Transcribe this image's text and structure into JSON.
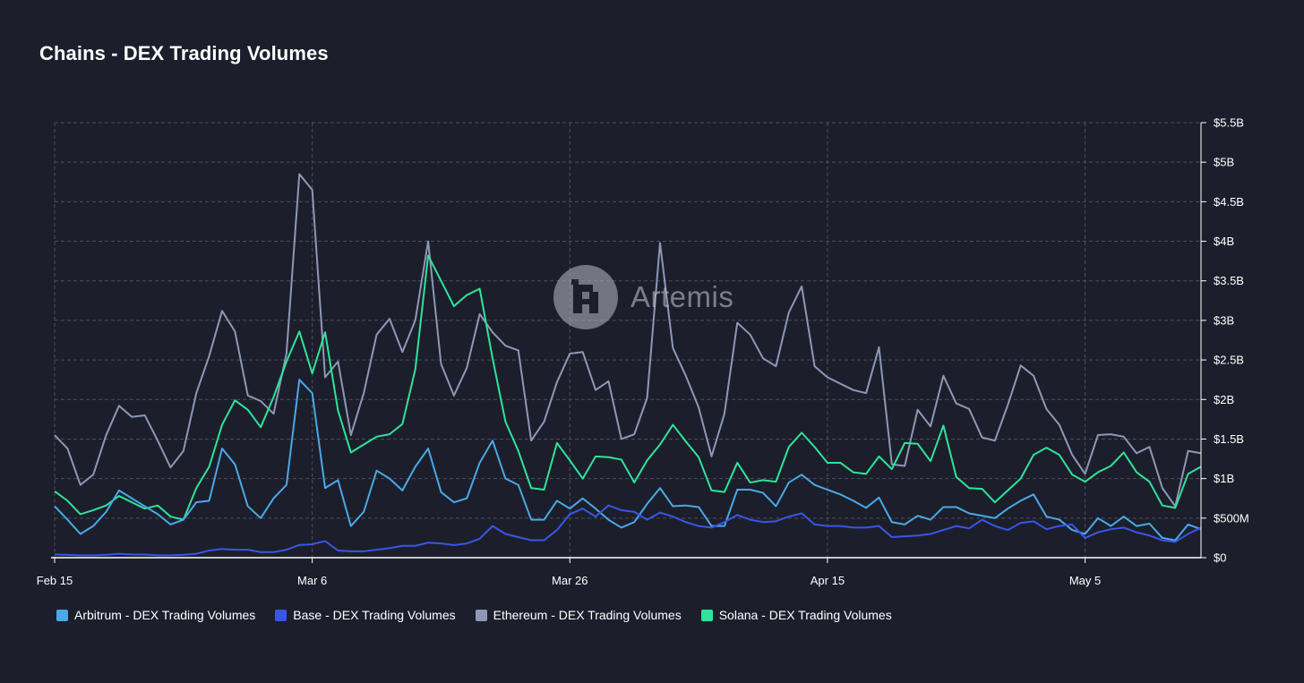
{
  "title": "Chains - DEX Trading Volumes",
  "watermark": {
    "text": "Artemis",
    "icon": "artemis-logo-icon"
  },
  "colors": {
    "background": "#1c1f2b",
    "grid": "#4a4e5e",
    "axis": "#ffffff"
  },
  "chart_data": {
    "type": "line",
    "title": "Chains - DEX Trading Volumes",
    "x_start": "Feb 15",
    "x_tick_labels": [
      "Feb 15",
      "Mar 6",
      "Mar 26",
      "Apr 15",
      "May 5"
    ],
    "x_tick_index": [
      0,
      20,
      40,
      60,
      80
    ],
    "y_tick_labels": [
      "$0",
      "$500M",
      "$1B",
      "$1.5B",
      "$2B",
      "$2.5B",
      "$3B",
      "$3.5B",
      "$4B",
      "$4.5B",
      "$5B",
      "$5.5B"
    ],
    "y_ticks": [
      0,
      0.5,
      1,
      1.5,
      2,
      2.5,
      3,
      3.5,
      4,
      4.5,
      5,
      5.5
    ],
    "ylim": [
      0,
      5.5
    ],
    "y_unit": "B USD",
    "y_axis_side": "right",
    "grid": true,
    "legend_position": "bottom-left",
    "series": [
      {
        "name": "Arbitrum - DEX Trading Volumes",
        "color": "#4aa8e8",
        "values": [
          0.65,
          0.48,
          0.3,
          0.4,
          0.58,
          0.85,
          0.75,
          0.65,
          0.55,
          0.42,
          0.48,
          0.7,
          0.72,
          1.38,
          1.18,
          0.65,
          0.5,
          0.75,
          0.92,
          2.25,
          2.08,
          0.88,
          0.98,
          0.4,
          0.58,
          1.1,
          1.0,
          0.85,
          1.15,
          1.38,
          0.83,
          0.7,
          0.75,
          1.2,
          1.48,
          1.0,
          0.92,
          0.48,
          0.48,
          0.72,
          0.62,
          0.75,
          0.62,
          0.48,
          0.38,
          0.45,
          0.68,
          0.88,
          0.65,
          0.66,
          0.64,
          0.4,
          0.4,
          0.86,
          0.86,
          0.82,
          0.65,
          0.95,
          1.05,
          0.92,
          0.86,
          0.8,
          0.72,
          0.63,
          0.76,
          0.45,
          0.42,
          0.53,
          0.48,
          0.64,
          0.64,
          0.56,
          0.53,
          0.5,
          0.62,
          0.72,
          0.8,
          0.52,
          0.48,
          0.35,
          0.3,
          0.5,
          0.4,
          0.52,
          0.4,
          0.43,
          0.25,
          0.22,
          0.42,
          0.36
        ]
      },
      {
        "name": "Base - DEX Trading Volumes",
        "color": "#3856e6",
        "values": [
          0.04,
          0.035,
          0.03,
          0.03,
          0.035,
          0.05,
          0.04,
          0.04,
          0.03,
          0.03,
          0.035,
          0.05,
          0.09,
          0.11,
          0.1,
          0.1,
          0.07,
          0.07,
          0.1,
          0.16,
          0.17,
          0.21,
          0.09,
          0.08,
          0.08,
          0.1,
          0.12,
          0.15,
          0.15,
          0.19,
          0.18,
          0.16,
          0.18,
          0.24,
          0.4,
          0.3,
          0.26,
          0.22,
          0.22,
          0.35,
          0.55,
          0.62,
          0.52,
          0.66,
          0.6,
          0.58,
          0.48,
          0.57,
          0.52,
          0.45,
          0.4,
          0.38,
          0.45,
          0.54,
          0.48,
          0.45,
          0.46,
          0.52,
          0.56,
          0.42,
          0.4,
          0.4,
          0.38,
          0.38,
          0.4,
          0.26,
          0.27,
          0.28,
          0.3,
          0.35,
          0.4,
          0.37,
          0.48,
          0.4,
          0.35,
          0.44,
          0.46,
          0.36,
          0.4,
          0.42,
          0.25,
          0.32,
          0.36,
          0.38,
          0.32,
          0.28,
          0.22,
          0.2,
          0.3,
          0.38
        ]
      },
      {
        "name": "Ethereum - DEX Trading Volumes",
        "color": "#8e97b8",
        "values": [
          1.55,
          1.38,
          0.92,
          1.05,
          1.55,
          1.92,
          1.78,
          1.8,
          1.48,
          1.14,
          1.35,
          2.08,
          2.55,
          3.12,
          2.86,
          2.05,
          1.98,
          1.82,
          2.58,
          4.85,
          4.65,
          2.28,
          2.48,
          1.55,
          2.08,
          2.82,
          3.02,
          2.6,
          3.0,
          4.0,
          2.45,
          2.05,
          2.4,
          3.08,
          2.85,
          2.68,
          2.62,
          1.48,
          1.72,
          2.22,
          2.58,
          2.6,
          2.12,
          2.23,
          1.5,
          1.56,
          2.02,
          3.98,
          2.65,
          2.3,
          1.9,
          1.28,
          1.82,
          2.97,
          2.82,
          2.52,
          2.42,
          3.1,
          3.43,
          2.42,
          2.28,
          2.2,
          2.12,
          2.08,
          2.66,
          1.18,
          1.16,
          1.87,
          1.66,
          2.3,
          1.95,
          1.88,
          1.52,
          1.48,
          1.93,
          2.43,
          2.3,
          1.88,
          1.68,
          1.3,
          1.06,
          1.55,
          1.56,
          1.53,
          1.32,
          1.4,
          0.88,
          0.65,
          1.35,
          1.32
        ]
      },
      {
        "name": "Solana - DEX Trading Volumes",
        "color": "#2fe39a",
        "values": [
          0.84,
          0.72,
          0.55,
          0.6,
          0.66,
          0.78,
          0.7,
          0.62,
          0.66,
          0.52,
          0.48,
          0.88,
          1.15,
          1.68,
          1.99,
          1.87,
          1.65,
          2.03,
          2.48,
          2.86,
          2.33,
          2.85,
          1.86,
          1.33,
          1.43,
          1.53,
          1.56,
          1.69,
          2.38,
          3.82,
          3.5,
          3.18,
          3.32,
          3.4,
          2.52,
          1.72,
          1.35,
          0.88,
          0.86,
          1.45,
          1.23,
          1.0,
          1.28,
          1.27,
          1.24,
          0.95,
          1.23,
          1.43,
          1.68,
          1.47,
          1.27,
          0.85,
          0.83,
          1.2,
          0.95,
          0.98,
          0.96,
          1.4,
          1.58,
          1.4,
          1.2,
          1.2,
          1.08,
          1.06,
          1.28,
          1.12,
          1.45,
          1.44,
          1.22,
          1.67,
          1.02,
          0.88,
          0.87,
          0.7,
          0.85,
          1.0,
          1.3,
          1.39,
          1.3,
          1.05,
          0.96,
          1.08,
          1.16,
          1.33,
          1.08,
          0.96,
          0.66,
          0.63,
          1.06,
          1.15
        ]
      }
    ]
  },
  "legend": [
    {
      "label": "Arbitrum - DEX Trading Volumes",
      "color": "#4aa8e8"
    },
    {
      "label": "Base - DEX Trading Volumes",
      "color": "#3856e6"
    },
    {
      "label": "Ethereum - DEX Trading Volumes",
      "color": "#8e97b8"
    },
    {
      "label": "Solana - DEX Trading Volumes",
      "color": "#2fe39a"
    }
  ]
}
